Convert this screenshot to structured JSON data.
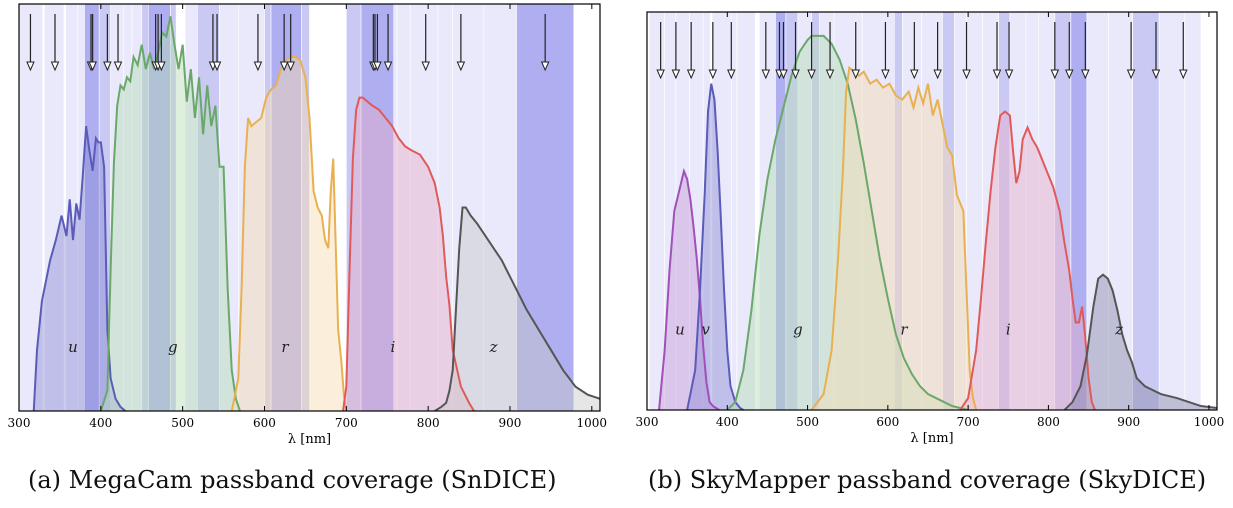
{
  "chart_data": [
    {
      "type": "line",
      "caption": "(a) MegaCam passband coverage (SnDICE)",
      "xlabel": "λ  [nm]",
      "xlim": [
        300,
        1010
      ],
      "xticks": [
        300,
        400,
        500,
        600,
        700,
        800,
        900,
        1000
      ],
      "led_bands": [
        {
          "start": 300,
          "end": 329,
          "tone": 1
        },
        {
          "start": 331,
          "end": 355,
          "tone": 1
        },
        {
          "start": 357,
          "end": 372,
          "tone": 1
        },
        {
          "start": 372,
          "end": 380,
          "tone": 1
        },
        {
          "start": 380,
          "end": 398,
          "tone": 3
        },
        {
          "start": 398,
          "end": 412,
          "tone": 2
        },
        {
          "start": 412,
          "end": 428,
          "tone": 1
        },
        {
          "start": 428,
          "end": 438,
          "tone": 1
        },
        {
          "start": 438,
          "end": 450,
          "tone": 1
        },
        {
          "start": 450,
          "end": 458,
          "tone": 2
        },
        {
          "start": 458,
          "end": 485,
          "tone": 3
        },
        {
          "start": 485,
          "end": 492,
          "tone": 2
        },
        {
          "start": 503,
          "end": 518,
          "tone": 1
        },
        {
          "start": 518,
          "end": 545,
          "tone": 2
        },
        {
          "start": 545,
          "end": 568,
          "tone": 1
        },
        {
          "start": 568,
          "end": 600,
          "tone": 1
        },
        {
          "start": 600,
          "end": 608,
          "tone": 2
        },
        {
          "start": 608,
          "end": 645,
          "tone": 3
        },
        {
          "start": 645,
          "end": 655,
          "tone": 2
        },
        {
          "start": 700,
          "end": 718,
          "tone": 2
        },
        {
          "start": 718,
          "end": 758,
          "tone": 3
        },
        {
          "start": 758,
          "end": 762,
          "tone": 1
        },
        {
          "start": 762,
          "end": 778,
          "tone": 1
        },
        {
          "start": 778,
          "end": 812,
          "tone": 1
        },
        {
          "start": 812,
          "end": 830,
          "tone": 1
        },
        {
          "start": 830,
          "end": 868,
          "tone": 1
        },
        {
          "start": 868,
          "end": 908,
          "tone": 1
        },
        {
          "start": 908,
          "end": 978,
          "tone": 3
        }
      ],
      "arrows": [
        314,
        344,
        388,
        390,
        408,
        421,
        467,
        470,
        474,
        537,
        542,
        592,
        624,
        632,
        733,
        735,
        738,
        751,
        797,
        840,
        943
      ],
      "bands": [
        {
          "name": "u",
          "color": "#5b5bb8",
          "fill": "#8c8cd4",
          "label_x": 366,
          "label_y": 0.145,
          "x": [
            318,
            322,
            328,
            338,
            345,
            352,
            358,
            362,
            366,
            370,
            374,
            378,
            382,
            386,
            390,
            394,
            397,
            400,
            404,
            408,
            412,
            418,
            424,
            430
          ],
          "y": [
            0,
            0.15,
            0.27,
            0.37,
            0.42,
            0.48,
            0.43,
            0.52,
            0.42,
            0.51,
            0.47,
            0.58,
            0.7,
            0.64,
            0.59,
            0.67,
            0.66,
            0.66,
            0.6,
            0.2,
            0.08,
            0.03,
            0.01,
            0
          ]
        },
        {
          "name": "g",
          "color": "#6aa86a",
          "fill": "#b5dbb5",
          "label_x": 488,
          "label_y": 0.145,
          "x": [
            400,
            408,
            412,
            416,
            420,
            424,
            428,
            432,
            436,
            440,
            445,
            450,
            455,
            460,
            465,
            470,
            475,
            480,
            485,
            490,
            495,
            500,
            505,
            510,
            515,
            520,
            525,
            530,
            535,
            540,
            545,
            550,
            555,
            560,
            565,
            570
          ],
          "y": [
            0,
            0.05,
            0.35,
            0.61,
            0.75,
            0.8,
            0.79,
            0.82,
            0.81,
            0.87,
            0.85,
            0.9,
            0.84,
            0.88,
            0.84,
            0.88,
            0.93,
            0.92,
            0.97,
            0.9,
            0.84,
            0.9,
            0.76,
            0.84,
            0.72,
            0.82,
            0.68,
            0.8,
            0.7,
            0.75,
            0.6,
            0.6,
            0.3,
            0.1,
            0.03,
            0
          ]
        },
        {
          "name": "r",
          "color": "#e8b050",
          "fill": "#f6dcb0",
          "label_x": 625,
          "label_y": 0.145,
          "x": [
            560,
            568,
            572,
            576,
            580,
            584,
            590,
            596,
            602,
            608,
            614,
            620,
            626,
            632,
            638,
            644,
            650,
            655,
            660,
            665,
            670,
            674,
            678,
            681,
            684,
            686,
            690,
            694,
            697,
            700
          ],
          "y": [
            0,
            0.08,
            0.3,
            0.6,
            0.72,
            0.7,
            0.71,
            0.72,
            0.77,
            0.79,
            0.8,
            0.84,
            0.86,
            0.87,
            0.87,
            0.86,
            0.82,
            0.72,
            0.54,
            0.5,
            0.48,
            0.42,
            0.4,
            0.54,
            0.62,
            0.48,
            0.2,
            0.12,
            0.04,
            0
          ]
        },
        {
          "name": "i",
          "color": "#e05a5a",
          "fill": "#e9b0c8",
          "label_x": 757,
          "label_y": 0.145,
          "x": [
            696,
            700,
            704,
            708,
            712,
            716,
            720,
            726,
            732,
            740,
            748,
            756,
            764,
            772,
            780,
            790,
            800,
            808,
            814,
            818,
            822,
            826,
            830,
            840,
            850,
            856
          ],
          "y": [
            0,
            0.06,
            0.35,
            0.62,
            0.74,
            0.77,
            0.77,
            0.76,
            0.75,
            0.74,
            0.72,
            0.7,
            0.67,
            0.65,
            0.64,
            0.63,
            0.6,
            0.56,
            0.5,
            0.43,
            0.33,
            0.26,
            0.15,
            0.06,
            0.02,
            0
          ]
        },
        {
          "name": "z",
          "color": "#555555",
          "fill": "#c8c8c8",
          "label_x": 880,
          "label_y": 0.145,
          "x": [
            808,
            816,
            822,
            826,
            830,
            834,
            838,
            842,
            846,
            852,
            860,
            870,
            880,
            890,
            900,
            910,
            920,
            935,
            950,
            965,
            980,
            995,
            1010
          ],
          "y": [
            0,
            0.01,
            0.02,
            0.05,
            0.1,
            0.25,
            0.4,
            0.5,
            0.5,
            0.48,
            0.46,
            0.43,
            0.4,
            0.37,
            0.33,
            0.29,
            0.25,
            0.2,
            0.15,
            0.1,
            0.06,
            0.04,
            0.03
          ]
        }
      ]
    },
    {
      "type": "line",
      "caption": "(b) SkyMapper passband coverage (SkyDICE)",
      "xlabel": "λ  [nm]",
      "xlim": [
        300,
        1010
      ],
      "xticks": [
        300,
        400,
        500,
        600,
        700,
        800,
        900,
        1000
      ],
      "led_bands": [
        {
          "start": 303,
          "end": 322,
          "tone": 1
        },
        {
          "start": 322,
          "end": 336,
          "tone": 1
        },
        {
          "start": 336,
          "end": 353,
          "tone": 1
        },
        {
          "start": 353,
          "end": 370,
          "tone": 1
        },
        {
          "start": 370,
          "end": 379,
          "tone": 1
        },
        {
          "start": 381,
          "end": 405,
          "tone": 1
        },
        {
          "start": 405,
          "end": 412,
          "tone": 1
        },
        {
          "start": 412,
          "end": 435,
          "tone": 1
        },
        {
          "start": 440,
          "end": 460,
          "tone": 1
        },
        {
          "start": 460,
          "end": 473,
          "tone": 3
        },
        {
          "start": 473,
          "end": 488,
          "tone": 2
        },
        {
          "start": 488,
          "end": 505,
          "tone": 1
        },
        {
          "start": 505,
          "end": 515,
          "tone": 2
        },
        {
          "start": 515,
          "end": 533,
          "tone": 1
        },
        {
          "start": 533,
          "end": 568,
          "tone": 1
        },
        {
          "start": 568,
          "end": 608,
          "tone": 1
        },
        {
          "start": 608,
          "end": 618,
          "tone": 2
        },
        {
          "start": 618,
          "end": 642,
          "tone": 1
        },
        {
          "start": 642,
          "end": 668,
          "tone": 1
        },
        {
          "start": 668,
          "end": 683,
          "tone": 2
        },
        {
          "start": 683,
          "end": 698,
          "tone": 1
        },
        {
          "start": 698,
          "end": 718,
          "tone": 1
        },
        {
          "start": 718,
          "end": 738,
          "tone": 1
        },
        {
          "start": 738,
          "end": 752,
          "tone": 2
        },
        {
          "start": 752,
          "end": 772,
          "tone": 1
        },
        {
          "start": 772,
          "end": 788,
          "tone": 1
        },
        {
          "start": 788,
          "end": 808,
          "tone": 1
        },
        {
          "start": 808,
          "end": 828,
          "tone": 2
        },
        {
          "start": 828,
          "end": 848,
          "tone": 3
        },
        {
          "start": 848,
          "end": 875,
          "tone": 1
        },
        {
          "start": 875,
          "end": 905,
          "tone": 1
        },
        {
          "start": 905,
          "end": 938,
          "tone": 2
        },
        {
          "start": 938,
          "end": 970,
          "tone": 1
        },
        {
          "start": 970,
          "end": 990,
          "tone": 1
        }
      ],
      "arrows": [
        317,
        336,
        355,
        382,
        405,
        448,
        465,
        470,
        485,
        505,
        528,
        560,
        597,
        633,
        662,
        698,
        736,
        751,
        808,
        826,
        846,
        903,
        934,
        968
      ],
      "bands": [
        {
          "name": "u",
          "color": "#a050b8",
          "fill": "#c89ad8",
          "label_x": 341,
          "label_y": 0.19,
          "x": [
            315,
            322,
            328,
            334,
            340,
            346,
            350,
            354,
            358,
            362,
            366,
            370,
            374,
            378,
            382,
            386,
            390
          ],
          "y": [
            0,
            0.15,
            0.35,
            0.5,
            0.55,
            0.6,
            0.58,
            0.53,
            0.46,
            0.38,
            0.28,
            0.16,
            0.07,
            0.02,
            0.01,
            0.005,
            0
          ]
        },
        {
          "name": "v",
          "color": "#5b5bb8",
          "fill": "#8c8cd4",
          "label_x": 373,
          "label_y": 0.19,
          "x": [
            350,
            360,
            366,
            372,
            376,
            380,
            384,
            388,
            392,
            396,
            400,
            404,
            410,
            416,
            420
          ],
          "y": [
            0,
            0.1,
            0.3,
            0.55,
            0.75,
            0.82,
            0.78,
            0.65,
            0.48,
            0.3,
            0.15,
            0.06,
            0.02,
            0.005,
            0
          ]
        },
        {
          "name": "g",
          "color": "#6aa86a",
          "fill": "#b5dbb5",
          "label_x": 488,
          "label_y": 0.19,
          "x": [
            400,
            410,
            420,
            430,
            440,
            450,
            460,
            470,
            480,
            490,
            500,
            505,
            510,
            520,
            530,
            540,
            550,
            560,
            570,
            580,
            590,
            600,
            610,
            620,
            630,
            640,
            650,
            660,
            680,
            700
          ],
          "y": [
            0,
            0.02,
            0.1,
            0.25,
            0.44,
            0.58,
            0.68,
            0.76,
            0.84,
            0.9,
            0.93,
            0.94,
            0.94,
            0.94,
            0.92,
            0.88,
            0.82,
            0.73,
            0.62,
            0.5,
            0.38,
            0.28,
            0.19,
            0.13,
            0.09,
            0.06,
            0.04,
            0.03,
            0.01,
            0
          ]
        },
        {
          "name": "r",
          "color": "#e8b050",
          "fill": "#f6dcb0",
          "label_x": 620,
          "label_y": 0.19,
          "x": [
            505,
            520,
            530,
            538,
            544,
            548,
            552,
            558,
            564,
            570,
            578,
            586,
            594,
            602,
            610,
            618,
            626,
            632,
            638,
            644,
            650,
            656,
            662,
            668,
            674,
            680,
            686,
            690,
            694,
            698,
            702,
            706,
            710
          ],
          "y": [
            0,
            0.04,
            0.15,
            0.38,
            0.6,
            0.8,
            0.86,
            0.85,
            0.84,
            0.85,
            0.82,
            0.83,
            0.81,
            0.82,
            0.79,
            0.78,
            0.8,
            0.76,
            0.81,
            0.77,
            0.82,
            0.74,
            0.78,
            0.72,
            0.66,
            0.64,
            0.54,
            0.52,
            0.5,
            0.3,
            0.1,
            0.03,
            0
          ]
        },
        {
          "name": "i",
          "color": "#e05a5a",
          "fill": "#e9b0c8",
          "label_x": 750,
          "label_y": 0.19,
          "x": [
            690,
            700,
            710,
            716,
            722,
            728,
            734,
            740,
            746,
            752,
            756,
            760,
            764,
            768,
            774,
            780,
            786,
            792,
            798,
            806,
            814,
            820,
            826,
            830,
            834,
            838,
            842,
            846,
            850,
            854,
            858
          ],
          "y": [
            0,
            0.03,
            0.15,
            0.28,
            0.42,
            0.55,
            0.66,
            0.74,
            0.75,
            0.74,
            0.65,
            0.57,
            0.6,
            0.68,
            0.71,
            0.68,
            0.66,
            0.63,
            0.6,
            0.56,
            0.5,
            0.42,
            0.35,
            0.28,
            0.22,
            0.22,
            0.26,
            0.18,
            0.08,
            0.02,
            0
          ]
        },
        {
          "name": "z",
          "color": "#555555",
          "fill": "#8a8aa8",
          "label_x": 888,
          "label_y": 0.19,
          "x": [
            820,
            830,
            840,
            848,
            856,
            862,
            868,
            874,
            880,
            886,
            892,
            898,
            904,
            910,
            920,
            930,
            940,
            950,
            960,
            975,
            990,
            1010
          ],
          "y": [
            0,
            0.02,
            0.06,
            0.14,
            0.26,
            0.33,
            0.34,
            0.33,
            0.3,
            0.25,
            0.19,
            0.15,
            0.12,
            0.08,
            0.06,
            0.05,
            0.04,
            0.035,
            0.03,
            0.02,
            0.01,
            0.005
          ]
        }
      ]
    }
  ]
}
